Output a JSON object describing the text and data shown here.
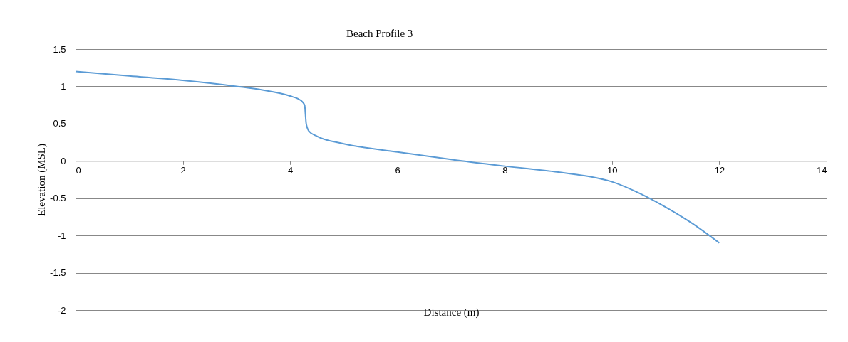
{
  "chart_data": {
    "type": "line",
    "title": "Beach Profile  3",
    "xlabel": "Distance (m)",
    "ylabel": "Elevation (MSL)",
    "x": [
      0,
      1,
      2,
      3,
      3.5,
      4,
      4.2,
      4.27,
      4.3,
      4.35,
      4.5,
      5,
      6,
      7,
      7.2,
      8,
      9,
      9.5,
      10,
      10.5,
      11,
      11.5,
      12
    ],
    "series": [
      {
        "color": "#5b9bd5",
        "values": [
          1.2,
          1.14,
          1.08,
          1.0,
          0.95,
          0.87,
          0.81,
          0.75,
          0.5,
          0.4,
          0.33,
          0.23,
          0.12,
          0.02,
          0.0,
          -0.07,
          -0.15,
          -0.2,
          -0.28,
          -0.43,
          -0.62,
          -0.84,
          -1.1
        ]
      }
    ],
    "xlim": [
      0,
      14
    ],
    "xticks": [
      0,
      2,
      4,
      6,
      8,
      10,
      12,
      14
    ],
    "ylim": [
      -2,
      1.5
    ],
    "yticks": [
      -2,
      -1.5,
      -1,
      -0.5,
      0,
      0.5,
      1,
      1.5
    ],
    "grid": "y",
    "marker": "none",
    "line_style": "solid"
  }
}
